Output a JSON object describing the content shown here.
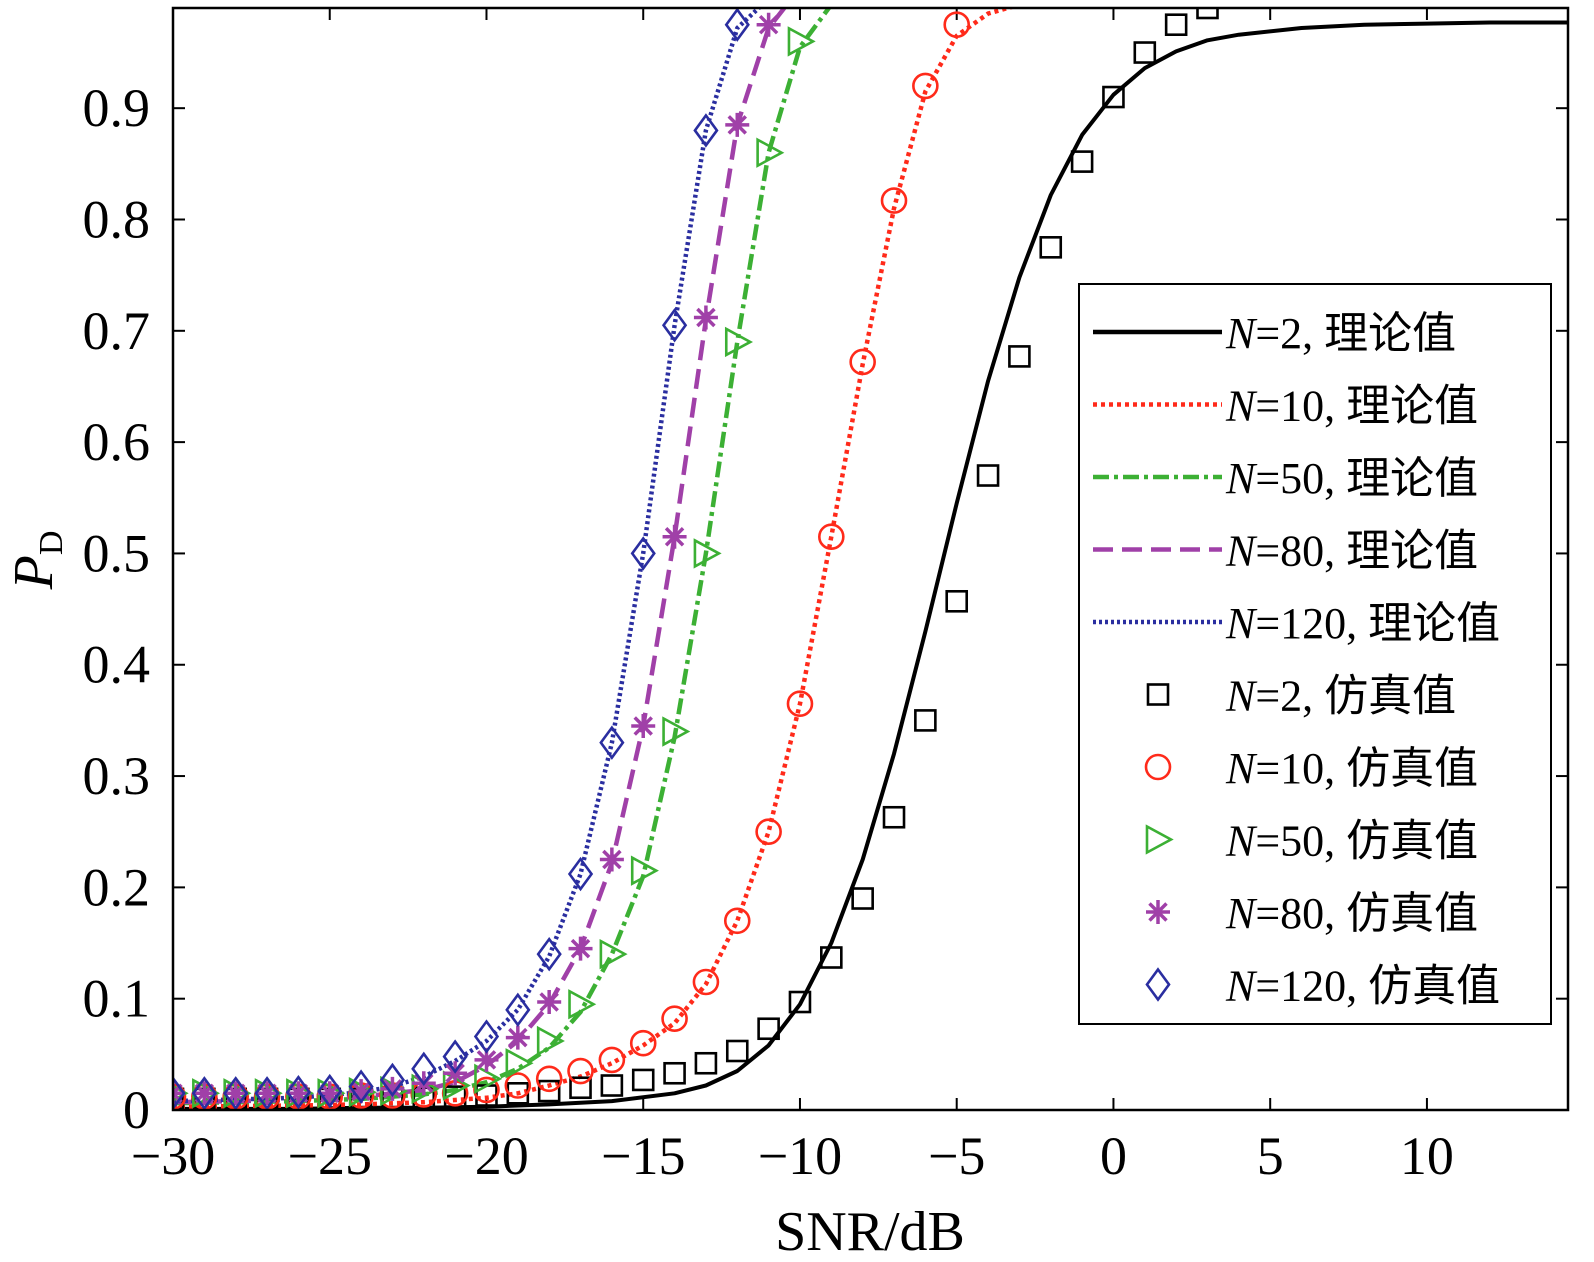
{
  "chart_data": {
    "type": "line",
    "title": "",
    "xlabel": "SNR/dB",
    "ylabel": "P",
    "ylabel_sub": "D",
    "xlim": [
      -30,
      14.5
    ],
    "ylim": [
      0,
      0.99
    ],
    "xticks": [
      -30,
      -25,
      -20,
      -15,
      -10,
      -5,
      0,
      5,
      10
    ],
    "xtick_labels": [
      "−30",
      "−25",
      "−20",
      "−15",
      "−10",
      "−5",
      "0",
      "5",
      "10"
    ],
    "yticks": [
      0,
      0.1,
      0.2,
      0.3,
      0.4,
      0.5,
      0.6,
      0.7,
      0.8,
      0.9
    ],
    "ytick_labels": [
      "0",
      "0.1",
      "0.2",
      "0.3",
      "0.4",
      "0.5",
      "0.6",
      "0.7",
      "0.8",
      "0.9"
    ],
    "grid": false,
    "legend_position": "right",
    "series": [
      {
        "name_var": "N",
        "name_rest": "=2, 理论值",
        "kind": "line",
        "color": "#000000",
        "dash": "",
        "x": [
          -30,
          -28,
          -26,
          -24,
          -22,
          -20,
          -18,
          -16,
          -14,
          -13,
          -12,
          -11,
          -10,
          -9,
          -8,
          -7,
          -6,
          -5,
          -4,
          -3,
          -2,
          -1,
          0,
          1,
          2,
          3,
          4,
          6,
          8,
          10,
          12,
          14.5
        ],
        "y": [
          0.001,
          0.001,
          0.001,
          0.002,
          0.002,
          0.003,
          0.005,
          0.008,
          0.015,
          0.022,
          0.035,
          0.058,
          0.095,
          0.15,
          0.225,
          0.32,
          0.43,
          0.545,
          0.655,
          0.748,
          0.822,
          0.876,
          0.912,
          0.936,
          0.951,
          0.961,
          0.966,
          0.972,
          0.975,
          0.976,
          0.977,
          0.977
        ]
      },
      {
        "name_var": "N",
        "name_rest": "=10, 理论值",
        "kind": "line",
        "color": "#ff2a1a",
        "dash": "4 4",
        "x": [
          -30,
          -26,
          -24,
          -22,
          -20,
          -19,
          -18,
          -17,
          -16,
          -15,
          -14,
          -13,
          -12,
          -11,
          -10,
          -9,
          -8,
          -7,
          -6,
          -5,
          -4,
          -3
        ],
        "y": [
          0.003,
          0.004,
          0.005,
          0.007,
          0.011,
          0.015,
          0.022,
          0.03,
          0.042,
          0.058,
          0.078,
          0.113,
          0.17,
          0.25,
          0.365,
          0.515,
          0.67,
          0.81,
          0.915,
          0.965,
          0.985,
          0.993
        ]
      },
      {
        "name_var": "N",
        "name_rest": "=50, 理论值",
        "kind": "line",
        "color": "#3cb034",
        "dash": "16 5 4 5",
        "x": [
          -30,
          -26,
          -24,
          -22,
          -21,
          -20,
          -19,
          -18,
          -17,
          -16,
          -15,
          -14,
          -13,
          -12,
          -11,
          -10,
          -9
        ],
        "y": [
          0.006,
          0.008,
          0.01,
          0.014,
          0.018,
          0.025,
          0.037,
          0.056,
          0.088,
          0.14,
          0.21,
          0.335,
          0.5,
          0.69,
          0.86,
          0.955,
          0.993
        ]
      },
      {
        "name_var": "N",
        "name_rest": "=80, 理论值",
        "kind": "line",
        "color": "#a040a8",
        "dash": "20 9",
        "x": [
          -30,
          -26,
          -24,
          -22,
          -21,
          -20,
          -19,
          -18,
          -17,
          -16,
          -15,
          -14,
          -13,
          -12,
          -11,
          -10.5
        ],
        "y": [
          0.007,
          0.009,
          0.012,
          0.018,
          0.025,
          0.04,
          0.062,
          0.095,
          0.145,
          0.222,
          0.345,
          0.515,
          0.71,
          0.885,
          0.972,
          0.99
        ]
      },
      {
        "name_var": "N",
        "name_rest": "=120, 理论值",
        "kind": "line",
        "color": "#2a2ea0",
        "dash": "3 3",
        "x": [
          -30,
          -26,
          -24,
          -23,
          -22,
          -21,
          -20,
          -19,
          -18,
          -17,
          -16,
          -15,
          -14,
          -13,
          -12,
          -11.2
        ],
        "y": [
          0.008,
          0.011,
          0.016,
          0.021,
          0.03,
          0.044,
          0.062,
          0.09,
          0.138,
          0.212,
          0.33,
          0.5,
          0.705,
          0.88,
          0.972,
          0.993
        ]
      },
      {
        "name_var": "N",
        "name_rest": "=2, 仿真值",
        "kind": "marker",
        "marker": "square",
        "color": "#000000",
        "x": [
          -30,
          -29,
          -28,
          -27,
          -26,
          -25,
          -24,
          -23,
          -22,
          -21,
          -20,
          -19,
          -18,
          -17,
          -16,
          -15,
          -14,
          -13,
          -12,
          -11,
          -10,
          -9,
          -8,
          -7,
          -6,
          -5,
          -4,
          -3,
          -2,
          -1,
          0,
          1,
          2,
          3
        ],
        "y": [
          0.01,
          0.01,
          0.01,
          0.01,
          0.01,
          0.01,
          0.01,
          0.011,
          0.011,
          0.012,
          0.013,
          0.015,
          0.017,
          0.02,
          0.022,
          0.027,
          0.033,
          0.042,
          0.053,
          0.073,
          0.097,
          0.137,
          0.19,
          0.263,
          0.35,
          0.457,
          0.57,
          0.677,
          0.775,
          0.852,
          0.91,
          0.95,
          0.975,
          0.99
        ]
      },
      {
        "name_var": "N",
        "name_rest": "=10, 仿真值",
        "kind": "marker",
        "marker": "circle",
        "color": "#ff2a1a",
        "x": [
          -30,
          -29,
          -28,
          -27,
          -26,
          -25,
          -24,
          -23,
          -22,
          -21,
          -20,
          -19,
          -18,
          -17,
          -16,
          -15,
          -14,
          -13,
          -12,
          -11,
          -10,
          -9,
          -8,
          -7,
          -6,
          -5
        ],
        "y": [
          0.012,
          0.012,
          0.012,
          0.012,
          0.012,
          0.012,
          0.013,
          0.013,
          0.014,
          0.015,
          0.018,
          0.022,
          0.028,
          0.035,
          0.045,
          0.06,
          0.082,
          0.115,
          0.17,
          0.25,
          0.365,
          0.515,
          0.672,
          0.817,
          0.92,
          0.975
        ]
      },
      {
        "name_var": "N",
        "name_rest": "=50, 仿真值",
        "kind": "marker",
        "marker": "triangle",
        "color": "#3cb034",
        "x": [
          -30,
          -29,
          -28,
          -27,
          -26,
          -25,
          -24,
          -23,
          -22,
          -21,
          -20,
          -19,
          -18,
          -17,
          -16,
          -15,
          -14,
          -13,
          -12,
          -11,
          -10
        ],
        "y": [
          0.015,
          0.015,
          0.015,
          0.015,
          0.015,
          0.015,
          0.016,
          0.017,
          0.019,
          0.022,
          0.028,
          0.042,
          0.062,
          0.095,
          0.14,
          0.215,
          0.34,
          0.5,
          0.69,
          0.86,
          0.96
        ]
      },
      {
        "name_var": "N",
        "name_rest": "=80, 仿真值",
        "kind": "marker",
        "marker": "asterisk",
        "color": "#a040a8",
        "x": [
          -30,
          -29,
          -28,
          -27,
          -26,
          -25,
          -24,
          -23,
          -22,
          -21,
          -20,
          -19,
          -18,
          -17,
          -16,
          -15,
          -14,
          -13,
          -12,
          -11
        ],
        "y": [
          0.015,
          0.015,
          0.015,
          0.015,
          0.015,
          0.015,
          0.017,
          0.019,
          0.024,
          0.033,
          0.045,
          0.065,
          0.097,
          0.145,
          0.225,
          0.345,
          0.515,
          0.712,
          0.885,
          0.975
        ]
      },
      {
        "name_var": "N",
        "name_rest": "=120, 仿真值",
        "kind": "marker",
        "marker": "diamond",
        "color": "#2a2ea0",
        "x": [
          -30,
          -29,
          -28,
          -27,
          -26,
          -25,
          -24,
          -23,
          -22,
          -21,
          -20,
          -19,
          -18,
          -17,
          -16,
          -15,
          -14,
          -13,
          -12
        ],
        "y": [
          0.015,
          0.015,
          0.015,
          0.015,
          0.016,
          0.017,
          0.021,
          0.027,
          0.037,
          0.048,
          0.066,
          0.09,
          0.14,
          0.212,
          0.33,
          0.5,
          0.705,
          0.88,
          0.975
        ]
      }
    ]
  }
}
